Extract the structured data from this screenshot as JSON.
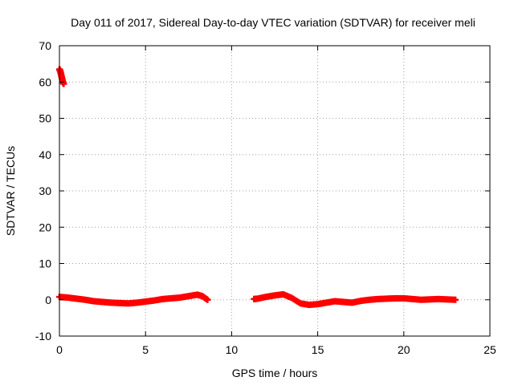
{
  "chart_data": {
    "type": "scatter",
    "title": "Day 011 of 2017, Sidereal Day-to-day VTEC variation (SDTVAR) for receiver meli",
    "xlabel": "GPS time / hours",
    "ylabel": "SDTVAR / TECUs",
    "xlim": [
      0,
      25
    ],
    "ylim": [
      -10,
      70
    ],
    "xticks": [
      0,
      5,
      10,
      15,
      20,
      25
    ],
    "yticks": [
      -10,
      0,
      10,
      20,
      30,
      40,
      50,
      60,
      70
    ],
    "xtick_labels": [
      "0",
      "5",
      "10",
      "15",
      "20",
      "25"
    ],
    "ytick_labels": [
      "-10",
      "0",
      "10",
      "20",
      "30",
      "40",
      "50",
      "60",
      "70"
    ],
    "grid": true,
    "marker": "+",
    "series": [
      {
        "name": "SDTVAR",
        "color": "#ff0000",
        "x": [
          0.0,
          0.05,
          0.1,
          0.15,
          0.2,
          0.25
        ],
        "y": [
          63.5,
          63.0,
          62.0,
          61.0,
          60.0,
          59.5
        ]
      },
      {
        "name": "SDTVAR",
        "color": "#ff0000",
        "x": [
          0.0,
          0.5,
          1.0,
          1.5,
          2.0,
          2.5,
          3.0,
          3.5,
          4.0,
          4.5,
          5.0,
          5.5,
          6.0,
          6.5,
          7.0,
          7.5,
          8.0,
          8.3,
          8.6
        ],
        "y": [
          0.8,
          0.6,
          0.3,
          0.0,
          -0.4,
          -0.6,
          -0.8,
          -0.9,
          -1.0,
          -0.8,
          -0.5,
          -0.2,
          0.2,
          0.4,
          0.6,
          1.0,
          1.4,
          1.0,
          0.0
        ]
      },
      {
        "name": "SDTVAR",
        "color": "#ff0000",
        "x": [
          11.3,
          11.5,
          12.0,
          12.5,
          13.0,
          13.5,
          14.0,
          14.5,
          15.0,
          15.5,
          16.0,
          16.5,
          17.0,
          17.5,
          18.0,
          18.5,
          19.0,
          19.5,
          20.0,
          20.5,
          21.0,
          21.5,
          22.0,
          22.5,
          23.0
        ],
        "y": [
          0.2,
          0.3,
          0.8,
          1.2,
          1.5,
          0.5,
          -1.0,
          -1.4,
          -1.2,
          -0.8,
          -0.4,
          -0.6,
          -0.8,
          -0.3,
          0.0,
          0.2,
          0.3,
          0.4,
          0.4,
          0.2,
          0.0,
          0.1,
          0.2,
          0.1,
          0.0
        ]
      }
    ]
  }
}
